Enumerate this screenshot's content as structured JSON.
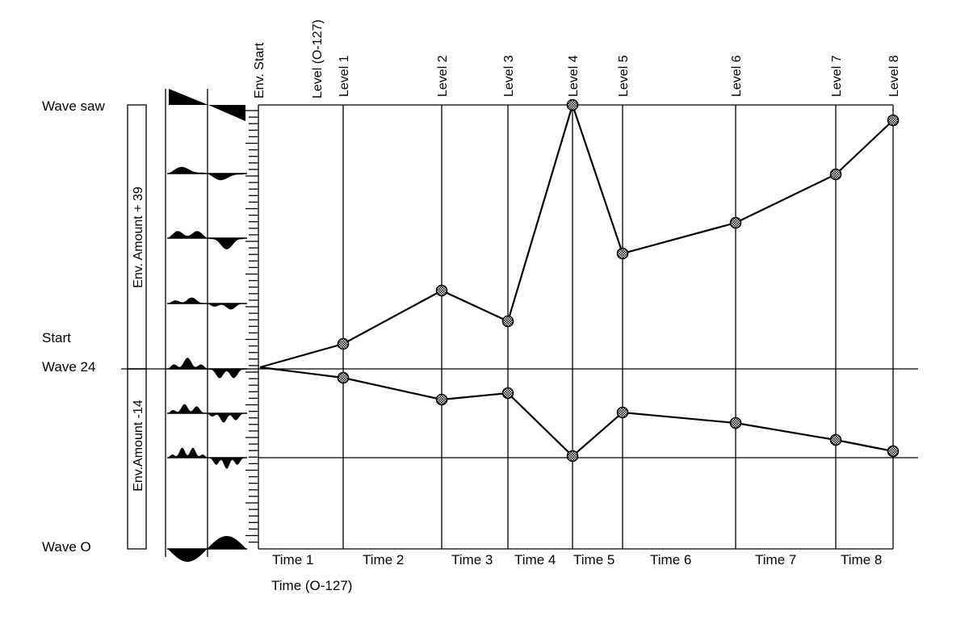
{
  "diagram": {
    "left_labels": {
      "wave_top": "Wave saw",
      "start": "Start",
      "wave_mid": "Wave 24",
      "wave_bottom": "Wave O"
    },
    "bar_labels": {
      "upper": "Env. Amount + 39",
      "lower": "Env.Amount -14"
    },
    "env_start_label": "Env. Start",
    "level_range_label": "Level (O-127)",
    "level_labels": [
      "Level 1",
      "Level 2",
      "Level 3",
      "Level 4",
      "Level 5",
      "Level 6",
      "Level 7",
      "Level 8"
    ],
    "time_labels": [
      "Time 1",
      "Time 2",
      "Time 3",
      "Time 4",
      "Time 5",
      "Time 6",
      "Time 7",
      "Time 8"
    ],
    "time_range_label": "Time (O-127)",
    "colors": {
      "ink": "#000000",
      "marker_fill": "#bbbbbb",
      "background": "#ffffff"
    }
  }
}
